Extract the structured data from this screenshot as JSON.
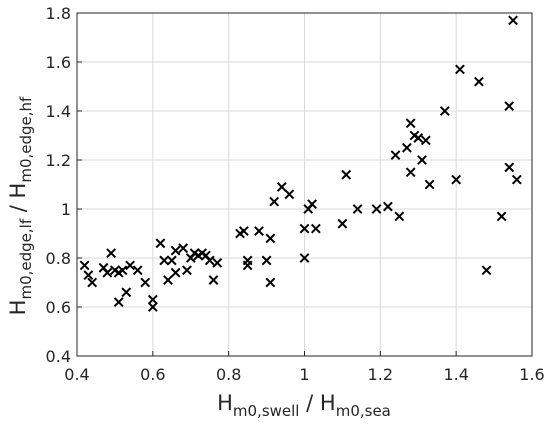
{
  "chart_data": {
    "type": "scatter",
    "marker": "x",
    "marker_color": "#000000",
    "grid": true,
    "xlim": [
      0.4,
      1.6
    ],
    "ylim": [
      0.4,
      1.8
    ],
    "xticks": [
      "0.4",
      "0.6",
      "0.8",
      "1",
      "1.2",
      "1.4",
      "1.6"
    ],
    "yticks": [
      "0.4",
      "0.6",
      "0.8",
      "1",
      "1.2",
      "1.4",
      "1.6",
      "1.8"
    ],
    "xlabel": {
      "main": "H",
      "sub1": "m0,swell",
      "sep": " / H",
      "sub2": "m0,sea"
    },
    "ylabel": {
      "main": "H",
      "sub1": "m0,edge,lf",
      "sep": " / H",
      "sub2": "m0,edge,hf"
    },
    "points": [
      [
        0.42,
        0.77
      ],
      [
        0.43,
        0.73
      ],
      [
        0.44,
        0.7
      ],
      [
        0.47,
        0.76
      ],
      [
        0.48,
        0.74
      ],
      [
        0.49,
        0.82
      ],
      [
        0.5,
        0.75
      ],
      [
        0.51,
        0.74
      ],
      [
        0.51,
        0.62
      ],
      [
        0.52,
        0.75
      ],
      [
        0.53,
        0.66
      ],
      [
        0.54,
        0.77
      ],
      [
        0.56,
        0.75
      ],
      [
        0.58,
        0.7
      ],
      [
        0.6,
        0.6
      ],
      [
        0.6,
        0.63
      ],
      [
        0.62,
        0.86
      ],
      [
        0.63,
        0.79
      ],
      [
        0.64,
        0.71
      ],
      [
        0.65,
        0.79
      ],
      [
        0.66,
        0.74
      ],
      [
        0.66,
        0.83
      ],
      [
        0.68,
        0.84
      ],
      [
        0.69,
        0.75
      ],
      [
        0.7,
        0.8
      ],
      [
        0.71,
        0.82
      ],
      [
        0.72,
        0.81
      ],
      [
        0.73,
        0.82
      ],
      [
        0.74,
        0.81
      ],
      [
        0.75,
        0.79
      ],
      [
        0.76,
        0.71
      ],
      [
        0.77,
        0.78
      ],
      [
        0.83,
        0.9
      ],
      [
        0.84,
        0.91
      ],
      [
        0.85,
        0.79
      ],
      [
        0.85,
        0.77
      ],
      [
        0.88,
        0.91
      ],
      [
        0.9,
        0.79
      ],
      [
        0.91,
        0.88
      ],
      [
        0.91,
        0.7
      ],
      [
        0.92,
        1.03
      ],
      [
        0.94,
        1.09
      ],
      [
        0.96,
        1.06
      ],
      [
        1.0,
        0.92
      ],
      [
        1.0,
        0.8
      ],
      [
        1.01,
        1.0
      ],
      [
        1.02,
        1.02
      ],
      [
        1.03,
        0.92
      ],
      [
        1.1,
        0.94
      ],
      [
        1.11,
        1.14
      ],
      [
        1.14,
        1.0
      ],
      [
        1.19,
        1.0
      ],
      [
        1.22,
        1.01
      ],
      [
        1.24,
        1.22
      ],
      [
        1.25,
        0.97
      ],
      [
        1.27,
        1.25
      ],
      [
        1.28,
        1.35
      ],
      [
        1.28,
        1.15
      ],
      [
        1.29,
        1.3
      ],
      [
        1.3,
        1.29
      ],
      [
        1.31,
        1.2
      ],
      [
        1.32,
        1.28
      ],
      [
        1.33,
        1.1
      ],
      [
        1.37,
        1.4
      ],
      [
        1.4,
        1.12
      ],
      [
        1.41,
        1.57
      ],
      [
        1.46,
        1.52
      ],
      [
        1.48,
        0.75
      ],
      [
        1.52,
        0.97
      ],
      [
        1.54,
        1.42
      ],
      [
        1.54,
        1.17
      ],
      [
        1.55,
        1.77
      ],
      [
        1.56,
        1.12
      ]
    ]
  }
}
